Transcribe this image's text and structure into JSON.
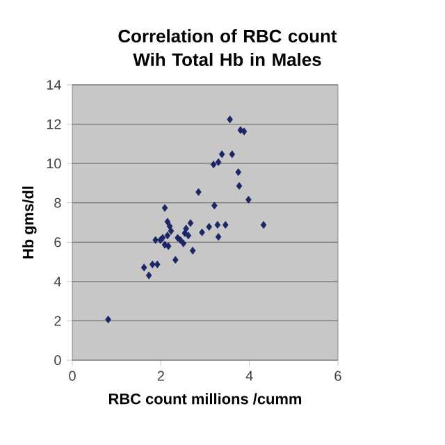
{
  "chart_data": {
    "type": "scatter",
    "title": "Correlation of RBC count Wih Total Hb in Males",
    "xlabel": "RBC count millions /cumm",
    "ylabel": "Hb gms/dl",
    "xlim": [
      0,
      6
    ],
    "xticks": [
      0,
      2,
      4,
      6
    ],
    "ylim": [
      0,
      14
    ],
    "yticks": [
      0,
      2,
      4,
      6,
      8,
      10,
      12,
      14
    ],
    "grid": "y",
    "marker": "diamond",
    "series": [
      {
        "color": "#1c2566",
        "x": [
          0.81,
          1.62,
          1.73,
          1.81,
          1.92,
          1.88,
          1.99,
          2.09,
          2.04,
          2.09,
          2.15,
          2.2,
          2.15,
          2.23,
          2.17,
          2.33,
          2.38,
          2.44,
          2.51,
          2.54,
          2.57,
          2.62,
          2.67,
          2.72,
          2.85,
          2.93,
          3.09,
          3.21,
          3.28,
          3.3,
          3.46,
          3.19,
          3.3,
          3.38,
          3.61,
          3.75,
          3.77,
          3.98,
          4.32,
          3.56,
          3.8,
          3.88
        ],
        "values": [
          2.07,
          4.71,
          4.31,
          4.87,
          4.87,
          6.11,
          6.11,
          7.74,
          6.22,
          5.87,
          7.04,
          6.81,
          6.34,
          6.57,
          5.8,
          5.1,
          6.22,
          6.11,
          5.94,
          6.46,
          6.69,
          6.34,
          6.97,
          5.57,
          8.55,
          6.5,
          6.78,
          7.86,
          6.88,
          6.27,
          6.88,
          9.95,
          10.07,
          10.47,
          10.47,
          9.56,
          8.86,
          8.16,
          6.88,
          12.24,
          11.7,
          11.63
        ]
      }
    ]
  }
}
